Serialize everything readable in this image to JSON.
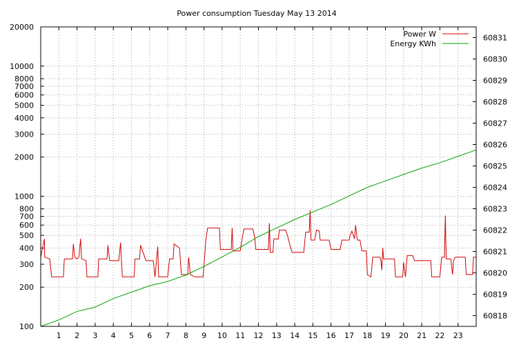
{
  "chart_data": {
    "type": "line",
    "title": "Power consumption Tuesday May 13 2014",
    "x": {
      "ticks": [
        1,
        2,
        3,
        4,
        5,
        6,
        7,
        8,
        9,
        10,
        11,
        12,
        13,
        14,
        15,
        16,
        17,
        18,
        19,
        20,
        21,
        22,
        23
      ],
      "range": [
        0,
        24
      ]
    },
    "y_left": {
      "scale": "log",
      "range": [
        100,
        20000
      ],
      "ticks": [
        100,
        200,
        300,
        400,
        500,
        600,
        700,
        800,
        1000,
        2000,
        3000,
        4000,
        5000,
        6000,
        7000,
        8000,
        10000,
        20000
      ],
      "grid": [
        200,
        300,
        400,
        500,
        600,
        700,
        800,
        1000,
        2000,
        3000,
        4000,
        5000,
        6000,
        7000,
        8000,
        10000
      ]
    },
    "y_right": {
      "scale": "linear",
      "range": [
        60817.5,
        60831.5
      ],
      "ticks": [
        60818,
        60819,
        60820,
        60821,
        60822,
        60823,
        60824,
        60825,
        60826,
        60827,
        60828,
        60829,
        60830,
        60831
      ]
    },
    "legend": {
      "position": "top-right"
    },
    "grid": true,
    "series": [
      {
        "name": "Power W",
        "axis": "left",
        "color": "#d00000",
        "points": [
          [
            0,
            340
          ],
          [
            0.2,
            470
          ],
          [
            0.22,
            340
          ],
          [
            0.5,
            330
          ],
          [
            0.6,
            240
          ],
          [
            1.25,
            240
          ],
          [
            1.3,
            330
          ],
          [
            1.75,
            330
          ],
          [
            1.8,
            430
          ],
          [
            1.88,
            340
          ],
          [
            2.0,
            330
          ],
          [
            2.1,
            340
          ],
          [
            2.2,
            470
          ],
          [
            2.25,
            330
          ],
          [
            2.5,
            320
          ],
          [
            2.55,
            240
          ],
          [
            3.15,
            240
          ],
          [
            3.2,
            330
          ],
          [
            3.65,
            330
          ],
          [
            3.7,
            420
          ],
          [
            3.8,
            320
          ],
          [
            4.3,
            320
          ],
          [
            4.4,
            440
          ],
          [
            4.45,
            320
          ],
          [
            4.5,
            240
          ],
          [
            5.15,
            240
          ],
          [
            5.2,
            330
          ],
          [
            5.45,
            330
          ],
          [
            5.5,
            420
          ],
          [
            5.8,
            320
          ],
          [
            6.2,
            320
          ],
          [
            6.3,
            240
          ],
          [
            6.45,
            410
          ],
          [
            6.5,
            240
          ],
          [
            7.0,
            240
          ],
          [
            7.1,
            330
          ],
          [
            7.3,
            330
          ],
          [
            7.35,
            430
          ],
          [
            7.65,
            400
          ],
          [
            7.7,
            320
          ],
          [
            7.75,
            250
          ],
          [
            8.1,
            250
          ],
          [
            8.15,
            340
          ],
          [
            8.25,
            250
          ],
          [
            8.5,
            240
          ],
          [
            8.95,
            240
          ],
          [
            9.1,
            460
          ],
          [
            9.2,
            570
          ],
          [
            9.85,
            570
          ],
          [
            9.9,
            390
          ],
          [
            10.5,
            390
          ],
          [
            10.55,
            570
          ],
          [
            10.6,
            380
          ],
          [
            11.0,
            380
          ],
          [
            11.1,
            470
          ],
          [
            11.2,
            560
          ],
          [
            11.7,
            560
          ],
          [
            11.8,
            480
          ],
          [
            11.85,
            390
          ],
          [
            12.3,
            390
          ],
          [
            12.55,
            390
          ],
          [
            12.6,
            620
          ],
          [
            12.65,
            370
          ],
          [
            12.8,
            370
          ],
          [
            12.85,
            470
          ],
          [
            13.1,
            470
          ],
          [
            13.15,
            550
          ],
          [
            13.5,
            550
          ],
          [
            13.6,
            500
          ],
          [
            13.7,
            440
          ],
          [
            13.85,
            370
          ],
          [
            14.5,
            370
          ],
          [
            14.6,
            530
          ],
          [
            14.8,
            530
          ],
          [
            14.85,
            780
          ],
          [
            14.9,
            460
          ],
          [
            15.1,
            460
          ],
          [
            15.2,
            550
          ],
          [
            15.35,
            540
          ],
          [
            15.4,
            460
          ],
          [
            15.9,
            460
          ],
          [
            16.0,
            390
          ],
          [
            16.5,
            390
          ],
          [
            16.6,
            460
          ],
          [
            17.0,
            460
          ],
          [
            17.05,
            500
          ],
          [
            17.15,
            540
          ],
          [
            17.3,
            470
          ],
          [
            17.35,
            600
          ],
          [
            17.45,
            460
          ],
          [
            17.6,
            460
          ],
          [
            17.7,
            380
          ],
          [
            17.95,
            380
          ],
          [
            18.0,
            250
          ],
          [
            18.2,
            240
          ],
          [
            18.3,
            340
          ],
          [
            18.7,
            340
          ],
          [
            18.75,
            320
          ],
          [
            18.8,
            270
          ],
          [
            18.85,
            400
          ],
          [
            18.9,
            330
          ],
          [
            19.5,
            330
          ],
          [
            19.55,
            240
          ],
          [
            19.95,
            240
          ],
          [
            20.0,
            310
          ],
          [
            20.1,
            240
          ],
          [
            20.2,
            350
          ],
          [
            20.5,
            350
          ],
          [
            20.6,
            320
          ],
          [
            21.5,
            320
          ],
          [
            21.55,
            240
          ],
          [
            22.0,
            240
          ],
          [
            22.1,
            340
          ],
          [
            22.25,
            340
          ],
          [
            22.3,
            710
          ],
          [
            22.35,
            330
          ],
          [
            22.6,
            330
          ],
          [
            22.7,
            250
          ],
          [
            22.75,
            320
          ],
          [
            22.85,
            340
          ],
          [
            23.4,
            340
          ],
          [
            23.45,
            250
          ],
          [
            23.8,
            250
          ],
          [
            23.85,
            340
          ],
          [
            24.0,
            340
          ]
        ]
      },
      {
        "name": "Energy KWh",
        "axis": "right",
        "color": "#00a000",
        "points": [
          [
            0,
            60817.5
          ],
          [
            1,
            60817.8
          ],
          [
            2,
            60818.2
          ],
          [
            3,
            60818.4
          ],
          [
            4,
            60818.8
          ],
          [
            5,
            60819.1
          ],
          [
            6,
            60819.4
          ],
          [
            7,
            60819.6
          ],
          [
            8,
            60819.9
          ],
          [
            9,
            60820.3
          ],
          [
            10,
            60820.75
          ],
          [
            11,
            60821.2
          ],
          [
            12,
            60821.7
          ],
          [
            13,
            60822.1
          ],
          [
            14,
            60822.5
          ],
          [
            15,
            60822.85
          ],
          [
            16,
            60823.2
          ],
          [
            17,
            60823.6
          ],
          [
            18,
            60824.0
          ],
          [
            19,
            60824.3
          ],
          [
            20,
            60824.6
          ],
          [
            21,
            60824.9
          ],
          [
            22,
            60825.15
          ],
          [
            23,
            60825.45
          ],
          [
            24,
            60825.75
          ]
        ]
      }
    ]
  }
}
